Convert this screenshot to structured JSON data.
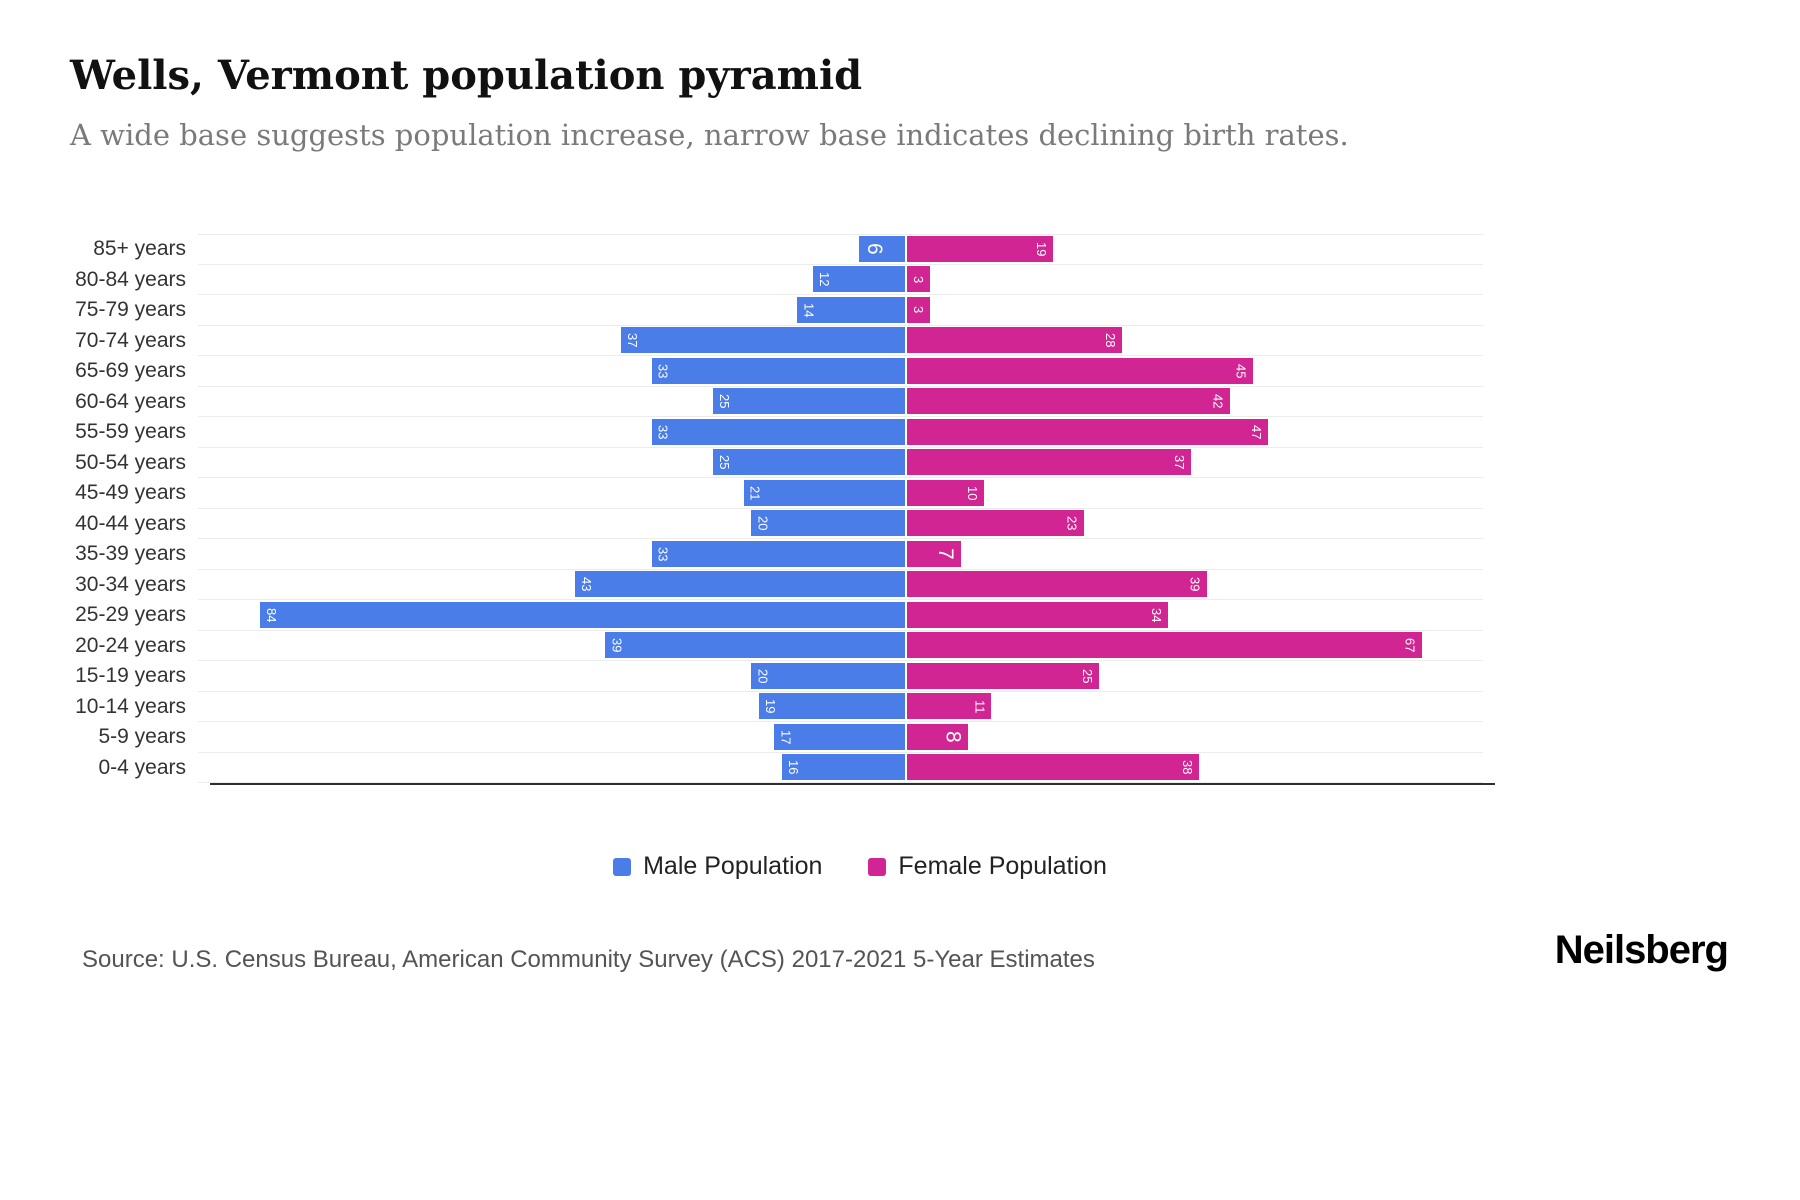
{
  "header": {
    "title": "Wells, Vermont population pyramid",
    "subtitle": "A wide base suggests population increase, narrow base indicates declining birth rates."
  },
  "chart_data": {
    "type": "bar",
    "variant": "population-pyramid",
    "orientation": "horizontal",
    "categories": [
      "85+ years",
      "80-84 years",
      "75-79 years",
      "70-74 years",
      "65-69 years",
      "60-64 years",
      "55-59 years",
      "50-54 years",
      "45-49 years",
      "40-44 years",
      "35-39 years",
      "30-34 years",
      "25-29 years",
      "20-24 years",
      "15-19 years",
      "10-14 years",
      "5-9 years",
      "0-4 years"
    ],
    "series": [
      {
        "name": "Male Population",
        "color": "#4a7de8",
        "values": [
          6,
          12,
          14,
          37,
          33,
          25,
          33,
          25,
          21,
          20,
          33,
          43,
          84,
          39,
          20,
          19,
          17,
          16
        ]
      },
      {
        "name": "Female Population",
        "color": "#d02592",
        "values": [
          19,
          3,
          3,
          28,
          45,
          42,
          47,
          37,
          10,
          23,
          7,
          39,
          34,
          67,
          25,
          11,
          8,
          38
        ]
      }
    ],
    "value_labels": "white, rotated 90deg, placed at outer end of each bar",
    "axis": {
      "center": 0,
      "male_side_max": 92,
      "female_side_max": 75
    },
    "gridlines": "horizontal light gray per row, dark baseline at bottom",
    "legend_position": "bottom-center"
  },
  "legend": {
    "items": [
      {
        "label": "Male Population",
        "color": "#4a7de8"
      },
      {
        "label": "Female Population",
        "color": "#d02592"
      }
    ]
  },
  "footer": {
    "source": "Source: U.S. Census Bureau, American Community Survey (ACS) 2017-2021 5-Year Estimates",
    "brand": "Neilsberg"
  }
}
